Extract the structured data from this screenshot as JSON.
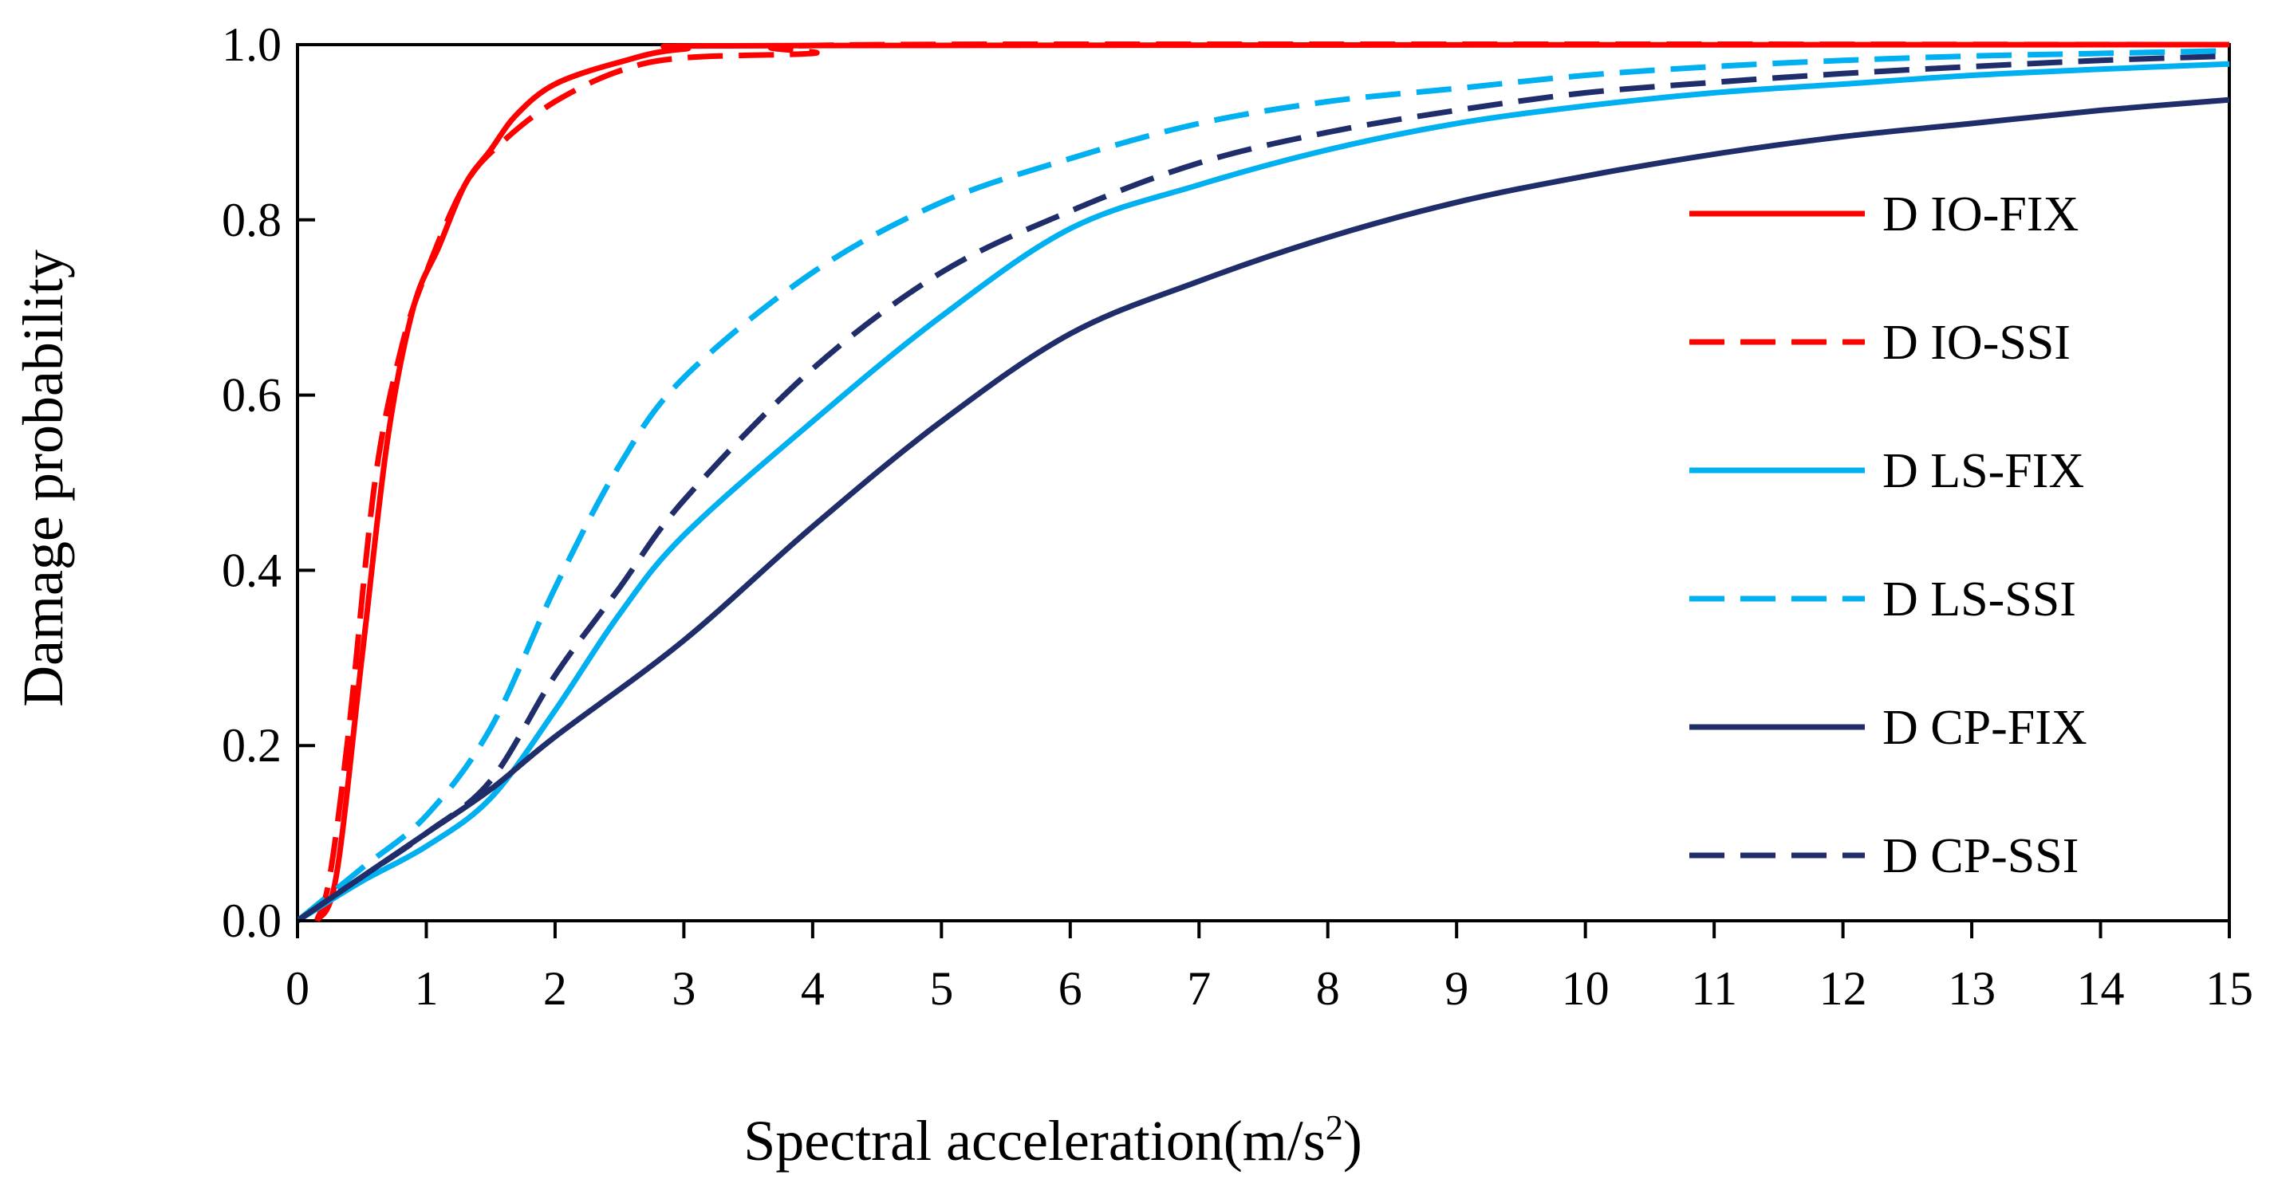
{
  "chart_data": {
    "type": "line",
    "title": "",
    "xlabel": "Spectral acceleration(m/s",
    "xlabel_sup": "2",
    "xlabel_close": ")",
    "ylabel": "Damage probability",
    "xlim": [
      0,
      15
    ],
    "ylim": [
      0,
      1
    ],
    "x_ticks": [
      0,
      1,
      2,
      3,
      4,
      5,
      6,
      7,
      8,
      9,
      10,
      11,
      12,
      13,
      14,
      15
    ],
    "x_tick_labels": [
      "0",
      "1",
      "2",
      "3",
      "4",
      "5",
      "6",
      "7",
      "8",
      "9",
      "10",
      "11",
      "12",
      "13",
      "14",
      "15"
    ],
    "y_ticks": [
      0,
      0.2,
      0.4,
      0.6,
      0.8,
      1.0
    ],
    "y_tick_labels": [
      "0.0",
      "0.2",
      "0.4",
      "0.6",
      "0.8",
      "1.0"
    ],
    "grid": false,
    "legend_position": "right",
    "series": [
      {
        "name": "D IO-FIX",
        "color": "#ff0000",
        "dash": "solid",
        "points": [
          [
            0.15,
            0.0
          ],
          [
            0.3,
            0.05
          ],
          [
            0.5,
            0.3
          ],
          [
            0.7,
            0.55
          ],
          [
            0.9,
            0.7
          ],
          [
            1.1,
            0.77
          ],
          [
            1.3,
            0.84
          ],
          [
            1.5,
            0.88
          ],
          [
            1.7,
            0.92
          ],
          [
            2.0,
            0.955
          ],
          [
            2.5,
            0.98
          ],
          [
            3.0,
            0.995
          ],
          [
            4.0,
            0.999
          ],
          [
            15.0,
            1.0
          ]
        ]
      },
      {
        "name": "D IO-SSI",
        "color": "#ff0000",
        "dash": "dashed",
        "points": [
          [
            0.15,
            0.0
          ],
          [
            0.25,
            0.05
          ],
          [
            0.4,
            0.22
          ],
          [
            0.6,
            0.5
          ],
          [
            0.8,
            0.65
          ],
          [
            1.0,
            0.74
          ],
          [
            1.3,
            0.84
          ],
          [
            1.6,
            0.89
          ],
          [
            2.0,
            0.935
          ],
          [
            2.5,
            0.97
          ],
          [
            3.0,
            0.985
          ],
          [
            4.0,
            0.99
          ],
          [
            4.6,
            1.0
          ],
          [
            15.0,
            1.0
          ]
        ]
      },
      {
        "name": "D LS-FIX",
        "color": "#00b0f0",
        "dash": "solid",
        "points": [
          [
            0,
            0.0
          ],
          [
            0.5,
            0.045
          ],
          [
            1.0,
            0.085
          ],
          [
            1.5,
            0.14
          ],
          [
            2.0,
            0.24
          ],
          [
            2.5,
            0.35
          ],
          [
            3.0,
            0.44
          ],
          [
            4.0,
            0.57
          ],
          [
            5.0,
            0.69
          ],
          [
            6.0,
            0.79
          ],
          [
            7.0,
            0.84
          ],
          [
            8.0,
            0.88
          ],
          [
            9.0,
            0.91
          ],
          [
            10.0,
            0.93
          ],
          [
            11.0,
            0.945
          ],
          [
            12.0,
            0.955
          ],
          [
            13.0,
            0.965
          ],
          [
            14.0,
            0.972
          ],
          [
            15.0,
            0.978
          ]
        ]
      },
      {
        "name": "D LS-SSI",
        "color": "#00b0f0",
        "dash": "dashed",
        "points": [
          [
            0,
            0.0
          ],
          [
            0.5,
            0.06
          ],
          [
            1.0,
            0.12
          ],
          [
            1.5,
            0.22
          ],
          [
            2.0,
            0.38
          ],
          [
            2.5,
            0.52
          ],
          [
            3.0,
            0.62
          ],
          [
            4.0,
            0.74
          ],
          [
            5.0,
            0.82
          ],
          [
            6.0,
            0.87
          ],
          [
            7.0,
            0.91
          ],
          [
            8.0,
            0.935
          ],
          [
            9.0,
            0.95
          ],
          [
            10.0,
            0.965
          ],
          [
            11.0,
            0.975
          ],
          [
            12.0,
            0.982
          ],
          [
            13.0,
            0.987
          ],
          [
            14.0,
            0.99
          ],
          [
            15.0,
            0.993
          ]
        ]
      },
      {
        "name": "D CP-FIX",
        "color": "#1f2d6a",
        "dash": "solid",
        "points": [
          [
            0,
            0.0
          ],
          [
            0.5,
            0.05
          ],
          [
            1.0,
            0.1
          ],
          [
            1.5,
            0.15
          ],
          [
            2.0,
            0.21
          ],
          [
            3.0,
            0.32
          ],
          [
            4.0,
            0.45
          ],
          [
            5.0,
            0.57
          ],
          [
            6.0,
            0.67
          ],
          [
            7.0,
            0.73
          ],
          [
            8.0,
            0.78
          ],
          [
            9.0,
            0.82
          ],
          [
            10.0,
            0.85
          ],
          [
            11.0,
            0.875
          ],
          [
            12.0,
            0.895
          ],
          [
            13.0,
            0.91
          ],
          [
            14.0,
            0.925
          ],
          [
            15.0,
            0.937
          ]
        ]
      },
      {
        "name": "D CP-SSI",
        "color": "#1f2d6a",
        "dash": "dashed",
        "points": [
          [
            0,
            0.0
          ],
          [
            0.5,
            0.05
          ],
          [
            1.0,
            0.1
          ],
          [
            1.5,
            0.16
          ],
          [
            2.0,
            0.28
          ],
          [
            2.5,
            0.38
          ],
          [
            3.0,
            0.48
          ],
          [
            4.0,
            0.63
          ],
          [
            5.0,
            0.74
          ],
          [
            6.0,
            0.81
          ],
          [
            7.0,
            0.865
          ],
          [
            8.0,
            0.9
          ],
          [
            9.0,
            0.925
          ],
          [
            10.0,
            0.945
          ],
          [
            11.0,
            0.957
          ],
          [
            12.0,
            0.967
          ],
          [
            13.0,
            0.975
          ],
          [
            14.0,
            0.982
          ],
          [
            15.0,
            0.987
          ]
        ]
      }
    ]
  }
}
